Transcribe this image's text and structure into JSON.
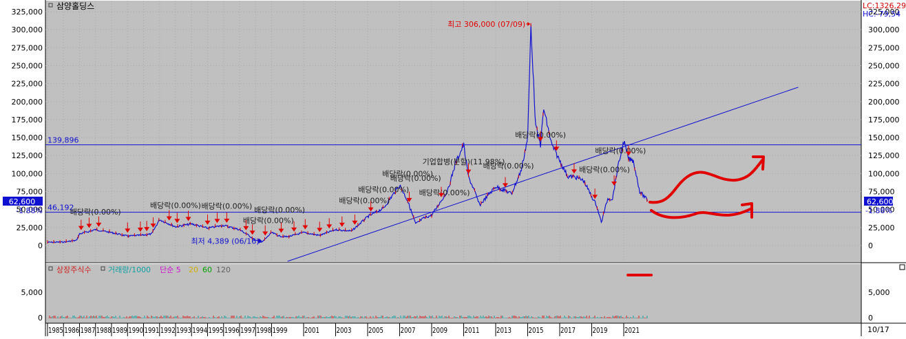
{
  "chart_data": {
    "type": "line",
    "title": "삼양홀딩스",
    "x_axis_labels": [
      "1985",
      "1986",
      "1987",
      "1988",
      "1989",
      "1990",
      "1991",
      "1992",
      "1993",
      "1994",
      "1995",
      "1996",
      "1997",
      "1998",
      "1999",
      "2001",
      "2003",
      "2005",
      "2007",
      "2009",
      "2011",
      "2013",
      "2015",
      "2017",
      "2019",
      "2021"
    ],
    "right_footer": "10/17",
    "y_axis_ticks": [
      "325,000",
      "300,000",
      "275,000",
      "250,000",
      "225,000",
      "200,000",
      "175,000",
      "150,000",
      "125,000",
      "100,000",
      "75,000",
      "50,000",
      "25,000",
      "0"
    ],
    "ylim": [
      0,
      325000
    ],
    "series": [
      {
        "name": "price",
        "color": "#1010d0",
        "x": [
          1985.0,
          1986.0,
          1986.8,
          1987.0,
          1988.0,
          1989.0,
          1990.0,
          1991.0,
          1991.5,
          1992.0,
          1993.0,
          1994.0,
          1995.0,
          1996.0,
          1997.0,
          1997.5,
          1998.0,
          1998.4,
          1999.0,
          1999.5,
          2000.0,
          2001.0,
          2002.0,
          2003.0,
          2004.0,
          2005.0,
          2006.0,
          2007.0,
          2007.5,
          2008.0,
          2008.5,
          2009.0,
          2010.0,
          2010.5,
          2011.0,
          2011.3,
          2011.6,
          2012.0,
          2013.0,
          2014.0,
          2014.6,
          2015.0,
          2015.2,
          2015.5,
          2015.8,
          2016.0,
          2016.5,
          2017.0,
          2017.5,
          2018.0,
          2018.5,
          2019.0,
          2019.3,
          2019.6,
          2020.0,
          2020.3,
          2020.6,
          2021.0,
          2021.3,
          2021.6,
          2022.0,
          2022.5
        ],
        "y": [
          4400,
          4800,
          7000,
          16000,
          22000,
          18000,
          13000,
          14500,
          16000,
          36000,
          26000,
          30000,
          24000,
          28000,
          22000,
          15000,
          7000,
          4389,
          18000,
          13000,
          12000,
          18000,
          14000,
          22000,
          20000,
          40000,
          52000,
          84000,
          62000,
          30000,
          38000,
          42000,
          76000,
          115000,
          140000,
          95000,
          80000,
          56000,
          82000,
          72000,
          105000,
          150000,
          306000,
          165000,
          140000,
          190000,
          140000,
          118000,
          96000,
          95000,
          90000,
          68000,
          56000,
          32000,
          65000,
          65000,
          105000,
          145000,
          120000,
          118000,
          75000,
          62600
        ]
      }
    ],
    "y_labels": [
      {
        "text": "최고 306,000 (07/09)",
        "color": "#e00000",
        "x": 2015.2,
        "y": 306000
      },
      {
        "text": "최저 4,389 (06/16)",
        "color": "#1010d0",
        "x": 1998.4,
        "y": 4389
      }
    ],
    "horizontal_lines": [
      {
        "value": 139896,
        "label": "139,896"
      },
      {
        "value": 46192,
        "label": "46,192"
      }
    ],
    "trend_line": {
      "x": [
        2000.0,
        2031.9
      ],
      "y": [
        -22000,
        220000
      ]
    },
    "current_value_label": "62,600",
    "pct_label": "-1.88%",
    "top_right_labels": [
      "LC:1326,29",
      "HC:-79,54"
    ],
    "dividend_annotations": [
      {
        "text": "배당락(0.00%)",
        "x": 2015.8,
        "y": 150000
      },
      {
        "text": "배당락(0.00%)",
        "x": 2020.8,
        "y": 128000
      },
      {
        "text": "기업합병(분할)(11.98%)",
        "x": 2011.0,
        "y": 113000
      },
      {
        "text": "배당락(0.00%)",
        "x": 2013.8,
        "y": 107000
      },
      {
        "text": "배당락(0.00%)",
        "x": 2019.8,
        "y": 102000
      },
      {
        "text": "배당락(0.00%)",
        "x": 2007.5,
        "y": 96000
      },
      {
        "text": "배당락(0.00%)",
        "x": 2008.0,
        "y": 90000
      },
      {
        "text": "배당락(0.00%)",
        "x": 2006.0,
        "y": 74000
      },
      {
        "text": "배당락(0.00%)",
        "x": 2009.8,
        "y": 70000
      },
      {
        "text": "배당락(0.00%)",
        "x": 2004.8,
        "y": 59000
      },
      {
        "text": "배당락(0.00%)",
        "x": 1993.0,
        "y": 52000
      },
      {
        "text": "배당락(0.00%)",
        "x": 1996.2,
        "y": 51000
      },
      {
        "text": "배당락(0.00%)",
        "x": 1999.5,
        "y": 46000
      },
      {
        "text": "배당락(0.00%)",
        "x": 1988.0,
        "y": 43000
      },
      {
        "text": "배당락(0.00%)",
        "x": 1998.8,
        "y": 31000
      }
    ],
    "handwriting_marks": "red hand-drawn arrows and dash"
  },
  "lower_pane": {
    "legend": [
      {
        "text": "상장주식수",
        "color": "#d02020"
      },
      {
        "text": "거래량/1000",
        "color": "#10a0a0"
      },
      {
        "text": "단순 5",
        "color": "#d010d0"
      },
      {
        "text": "20",
        "color": "#d0b000"
      },
      {
        "text": "60",
        "color": "#00a000"
      },
      {
        "text": "120",
        "color": "#606060"
      }
    ],
    "y_axis_ticks": [
      "5,000",
      "0"
    ]
  },
  "colors": {
    "background": "#c0c0c0",
    "price": "#1010d0",
    "marker": "#e00000"
  }
}
